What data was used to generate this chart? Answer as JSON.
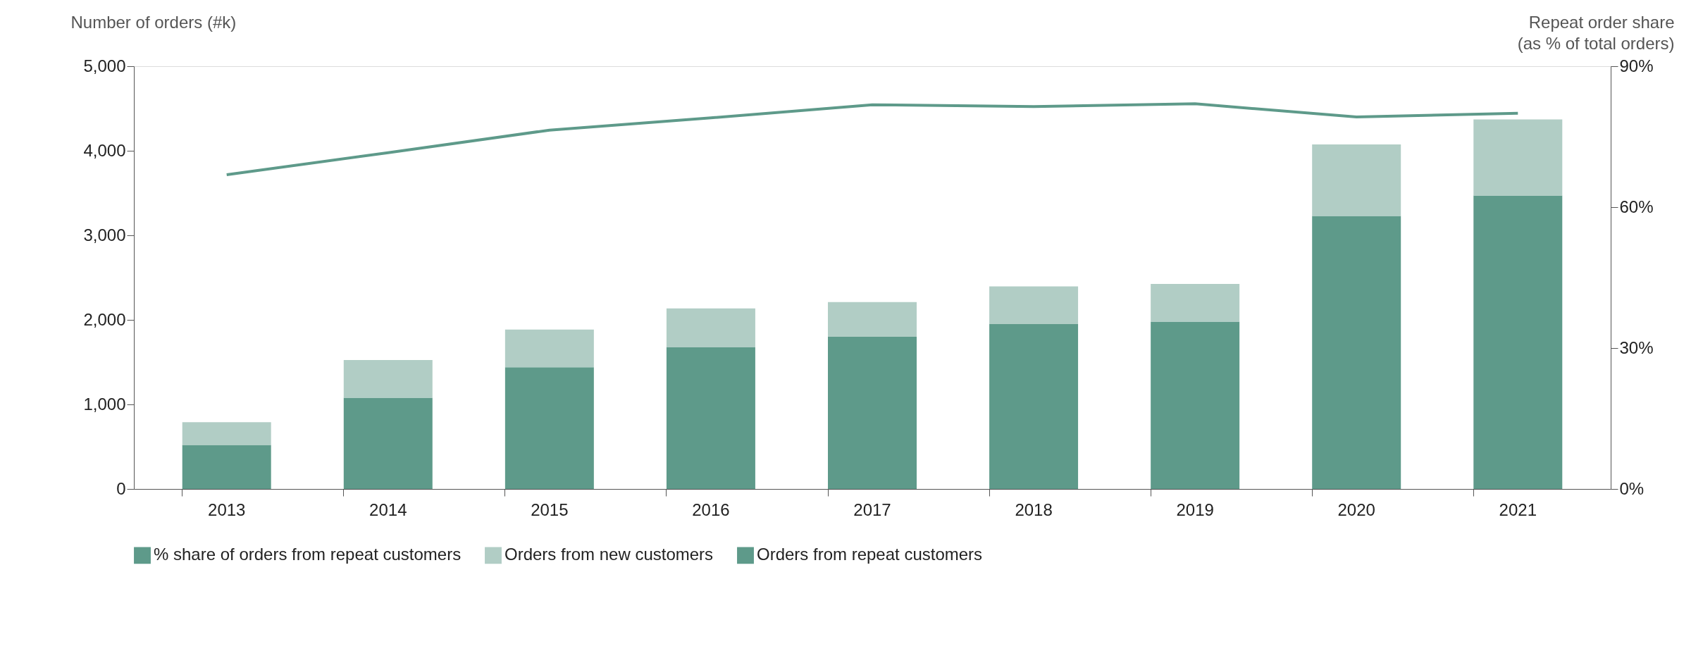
{
  "chart_data": {
    "type": "bar",
    "stacked": true,
    "ylabel": "Number of orders (#k)",
    "y2label": "Repeat order share\n(as % of total orders)",
    "categories": [
      "2013",
      "2014",
      "2015",
      "2016",
      "2017",
      "2018",
      "2019",
      "2020",
      "2021"
    ],
    "series": [
      {
        "name": "% share of orders from repeat customers",
        "type": "line",
        "axis": "y2",
        "color": "#5e9a8a",
        "values": [
          66.9,
          71.6,
          76.4,
          79.0,
          81.8,
          81.4,
          82.0,
          79.2,
          80.0
        ]
      },
      {
        "name": "Orders from repeat customers",
        "color": "#5e9a8a",
        "values": [
          520,
          1080,
          1440,
          1680,
          1800,
          1950,
          1980,
          3230,
          3470
        ]
      },
      {
        "name": "Orders from new customers",
        "color": "#b1cdc5",
        "values": [
          270,
          445,
          445,
          455,
          410,
          445,
          445,
          845,
          900
        ]
      }
    ],
    "ylim": [
      0,
      5000
    ],
    "yticks": [
      0,
      {
        "value": 1000,
        "label": "1,000"
      },
      {
        "value": 2000,
        "label": "2,000"
      },
      {
        "value": 3000,
        "label": "3,000"
      },
      {
        "value": 4000,
        "label": "4,000"
      },
      {
        "value": 5000,
        "label": "5,000"
      }
    ],
    "y2lim": [
      0,
      90
    ],
    "y2ticks": [
      {
        "value": 0,
        "label": "0%"
      },
      {
        "value": 30,
        "label": "30%"
      },
      {
        "value": 60,
        "label": "60%"
      },
      {
        "value": 90,
        "label": "90%"
      }
    ],
    "grid": false,
    "legend": "bottom left",
    "marker": "none",
    "line_style": "solid"
  }
}
